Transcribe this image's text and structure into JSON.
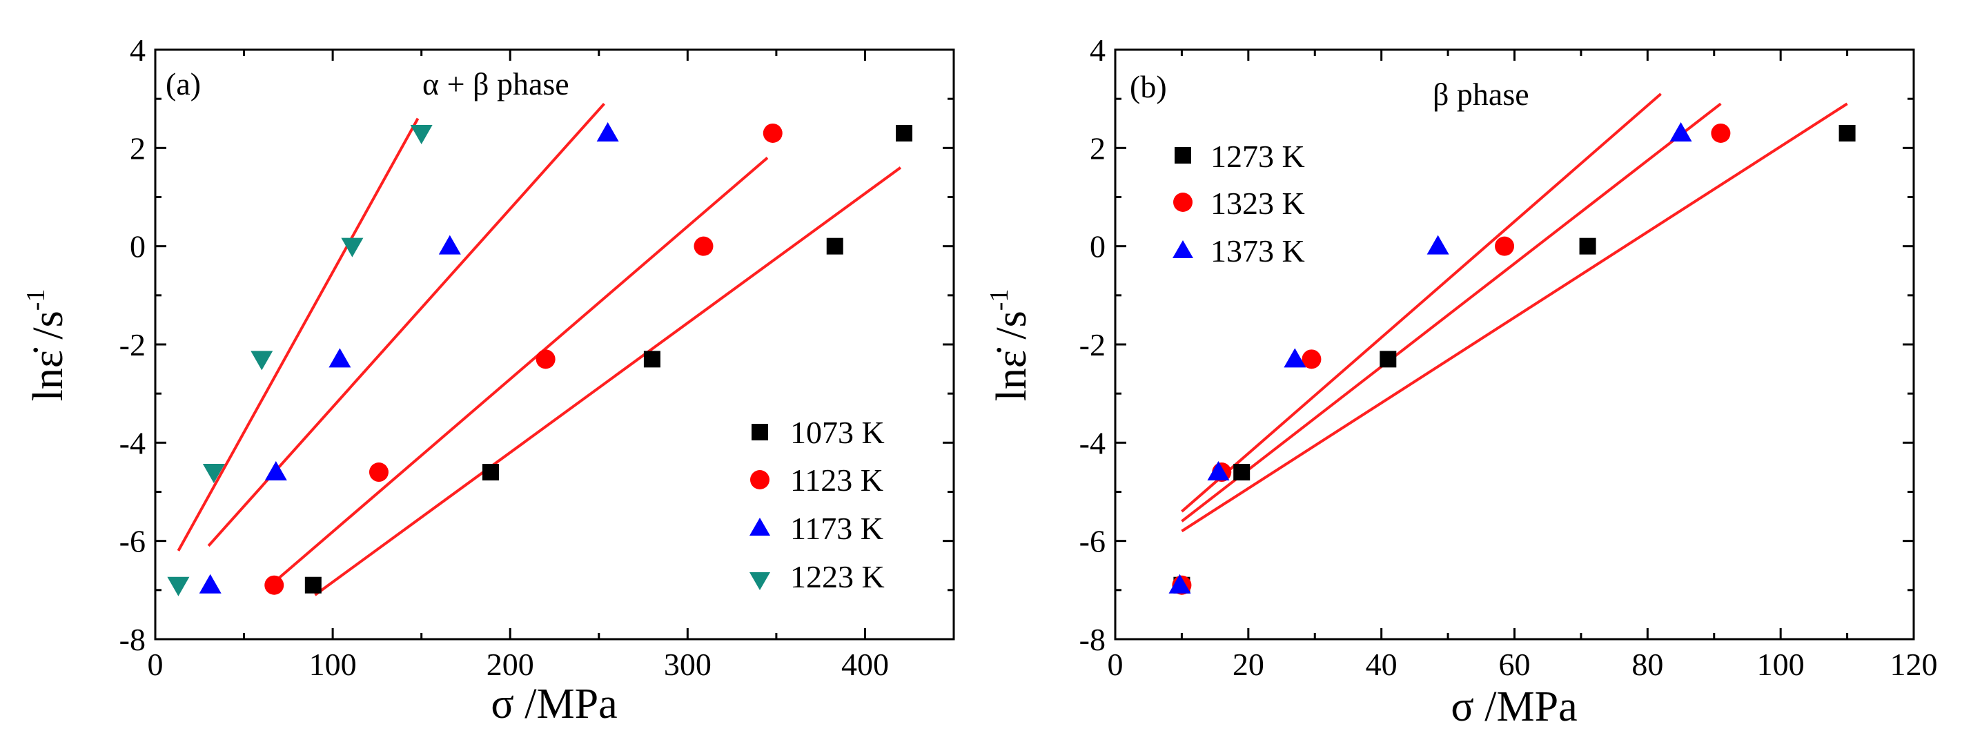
{
  "figure": {
    "background": "#ffffff",
    "line_color": "#ff2020"
  },
  "chart_data": [
    {
      "type": "scatter",
      "panel": "(a)",
      "annotation": "α + β phase",
      "xlabel": "σ /MPa",
      "ylabel_main": "lnε̇  /s",
      "ylabel_sup": "-1",
      "xlim": [
        0,
        450
      ],
      "ylim": [
        -8,
        4
      ],
      "xticks": [
        0,
        100,
        200,
        300,
        400
      ],
      "xtick_labels": [
        "0",
        "100",
        "200",
        "300",
        "400"
      ],
      "yticks": [
        -8,
        -6,
        -4,
        -2,
        0,
        2,
        4
      ],
      "ytick_labels": [
        "-8",
        "-6",
        "-4",
        "-2",
        "0",
        "2",
        "4"
      ],
      "legend_position": "bottom-right",
      "series": [
        {
          "name": "1073 K",
          "marker": "square",
          "color": "#000000",
          "x": [
            89,
            189,
            280,
            383,
            422
          ],
          "y": [
            -6.9,
            -4.6,
            -2.3,
            0,
            2.3
          ],
          "fit": [
            [
              90,
              -7.1
            ],
            [
              420,
              1.6
            ]
          ]
        },
        {
          "name": "1123 K",
          "marker": "circle",
          "color": "#ff0000",
          "x": [
            67,
            126,
            220,
            309,
            348
          ],
          "y": [
            -6.9,
            -4.6,
            -2.3,
            0,
            2.3
          ],
          "fit": [
            [
              65,
              -6.9
            ],
            [
              345,
              1.8
            ]
          ]
        },
        {
          "name": "1173 K",
          "marker": "triangle-up",
          "color": "#0000ff",
          "x": [
            31,
            68,
            104,
            166,
            255
          ],
          "y": [
            -6.9,
            -4.6,
            -2.3,
            0,
            2.3
          ],
          "fit": [
            [
              30,
              -6.1
            ],
            [
              253,
              2.9
            ]
          ]
        },
        {
          "name": "1223 K",
          "marker": "triangle-down",
          "color": "#128c7e",
          "x": [
            13,
            33,
            60,
            111,
            150
          ],
          "y": [
            -6.9,
            -4.6,
            -2.3,
            0,
            2.3
          ],
          "fit": [
            [
              13,
              -6.2
            ],
            [
              148,
              2.6
            ]
          ]
        }
      ]
    },
    {
      "type": "scatter",
      "panel": "(b)",
      "annotation": "β phase",
      "xlabel": "σ /MPa",
      "ylabel_main": "lnε̇  /s",
      "ylabel_sup": "-1",
      "xlim": [
        0,
        120
      ],
      "ylim": [
        -8,
        4
      ],
      "xticks": [
        0,
        20,
        40,
        60,
        80,
        100,
        120
      ],
      "xtick_labels": [
        "0",
        "20",
        "40",
        "60",
        "80",
        "100",
        "120"
      ],
      "yticks": [
        -8,
        -6,
        -4,
        -2,
        0,
        2,
        4
      ],
      "ytick_labels": [
        "-8",
        "-6",
        "-4",
        "-2",
        "0",
        "2",
        "4"
      ],
      "legend_position": "top-left",
      "series": [
        {
          "name": "1273 K",
          "marker": "square",
          "color": "#000000",
          "x": [
            10,
            19,
            41,
            71,
            110
          ],
          "y": [
            -6.9,
            -4.6,
            -2.3,
            0,
            2.3
          ],
          "fit": [
            [
              10,
              -5.8
            ],
            [
              110,
              2.9
            ]
          ]
        },
        {
          "name": "1323 K",
          "marker": "circle",
          "color": "#ff0000",
          "x": [
            10,
            16,
            29.5,
            58.5,
            91
          ],
          "y": [
            -6.9,
            -4.6,
            -2.3,
            0,
            2.3
          ],
          "fit": [
            [
              10,
              -5.6
            ],
            [
              91,
              2.9
            ]
          ]
        },
        {
          "name": "1373 K",
          "marker": "triangle-up",
          "color": "#0000ff",
          "x": [
            9.7,
            15.5,
            27,
            48.5,
            85
          ],
          "y": [
            -6.9,
            -4.6,
            -2.3,
            0,
            2.3
          ],
          "fit": [
            [
              10,
              -5.4
            ],
            [
              82,
              3.1
            ]
          ]
        }
      ]
    }
  ]
}
